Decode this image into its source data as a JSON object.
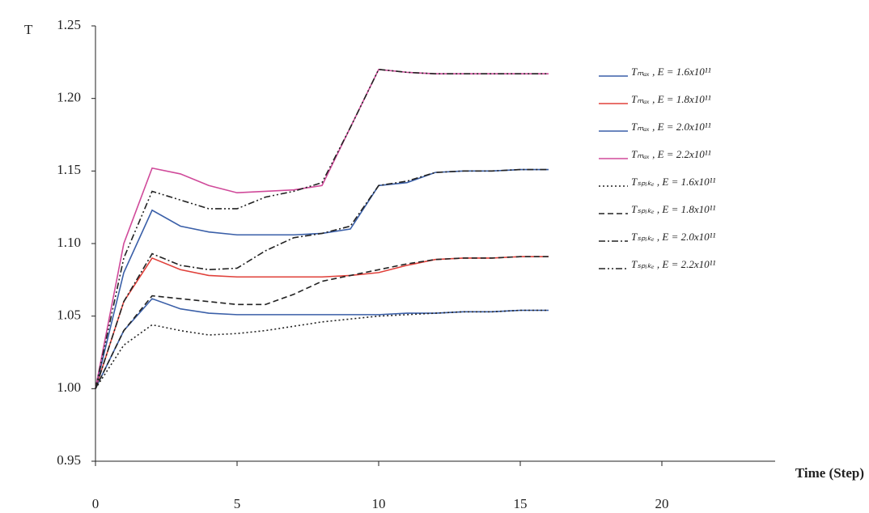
{
  "chart_data": {
    "type": "line",
    "y_label": "T",
    "x_label": "Time (Step)",
    "x": [
      0,
      1,
      2,
      3,
      4,
      5,
      6,
      7,
      8,
      9,
      10,
      11,
      12,
      13,
      14,
      15,
      16
    ],
    "series": [
      {
        "name": "Tₘₐₓ , E = 1.6x10¹¹",
        "color": "#3a5fa8",
        "dash": "none",
        "values": [
          1.0,
          1.04,
          1.062,
          1.055,
          1.052,
          1.051,
          1.051,
          1.051,
          1.051,
          1.051,
          1.051,
          1.052,
          1.052,
          1.053,
          1.053,
          1.054,
          1.054
        ]
      },
      {
        "name": "Tₘₐₓ , E = 1.8x10¹¹",
        "color": "#e0403a",
        "dash": "none",
        "values": [
          1.0,
          1.06,
          1.09,
          1.082,
          1.078,
          1.077,
          1.077,
          1.077,
          1.077,
          1.078,
          1.08,
          1.085,
          1.089,
          1.09,
          1.09,
          1.091,
          1.091
        ]
      },
      {
        "name": "Tₘₐₓ , E = 2.0x10¹¹",
        "color": "#3a5fa8",
        "dash": "none",
        "values": [
          1.0,
          1.08,
          1.123,
          1.112,
          1.108,
          1.106,
          1.106,
          1.106,
          1.107,
          1.11,
          1.14,
          1.142,
          1.149,
          1.15,
          1.15,
          1.151,
          1.151
        ]
      },
      {
        "name": "Tₘₐₓ , E = 2.2x10¹¹",
        "color": "#d04a9a",
        "dash": "none",
        "values": [
          1.0,
          1.1,
          1.152,
          1.148,
          1.14,
          1.135,
          1.136,
          1.137,
          1.14,
          1.18,
          1.22,
          1.218,
          1.217,
          1.217,
          1.217,
          1.217,
          1.217
        ]
      },
      {
        "name": "Tₛₚᵢₖₑ , E = 1.6x10¹¹",
        "color": "#222222",
        "dash": "2 3",
        "values": [
          1.0,
          1.03,
          1.044,
          1.04,
          1.037,
          1.038,
          1.04,
          1.043,
          1.046,
          1.048,
          1.05,
          1.051,
          1.052,
          1.053,
          1.053,
          1.054,
          1.054
        ]
      },
      {
        "name": "Tₛₚᵢₖₑ , E = 1.8x10¹¹",
        "color": "#222222",
        "dash": "7 4",
        "values": [
          1.0,
          1.04,
          1.064,
          1.062,
          1.06,
          1.058,
          1.058,
          1.065,
          1.074,
          1.078,
          1.082,
          1.086,
          1.089,
          1.09,
          1.09,
          1.091,
          1.091
        ]
      },
      {
        "name": "Tₛₚᵢₖₑ , E = 2.0x10¹¹",
        "color": "#222222",
        "dash": "8 3 2 3",
        "values": [
          1.0,
          1.06,
          1.093,
          1.085,
          1.082,
          1.083,
          1.095,
          1.104,
          1.107,
          1.112,
          1.14,
          1.143,
          1.149,
          1.15,
          1.15,
          1.151,
          1.151
        ]
      },
      {
        "name": "Tₛₚᵢₖₑ , E = 2.2x10¹¹",
        "color": "#222222",
        "dash": "8 3 2 3 2 3",
        "values": [
          1.0,
          1.09,
          1.136,
          1.13,
          1.124,
          1.124,
          1.132,
          1.136,
          1.142,
          1.18,
          1.22,
          1.218,
          1.217,
          1.217,
          1.217,
          1.217,
          1.217
        ]
      }
    ],
    "xlim": [
      0,
      24
    ],
    "xticks": [
      0,
      5,
      10,
      15,
      20
    ],
    "ylim": [
      0.95,
      1.25
    ],
    "yticks": [
      0.95,
      {
        "value": 1,
        "label": "1.00"
      },
      1.05,
      {
        "value": 1.1,
        "label": "1.10"
      },
      1.15,
      {
        "value": 1.2,
        "label": "1.20"
      },
      1.25
    ],
    "grid": false
  }
}
